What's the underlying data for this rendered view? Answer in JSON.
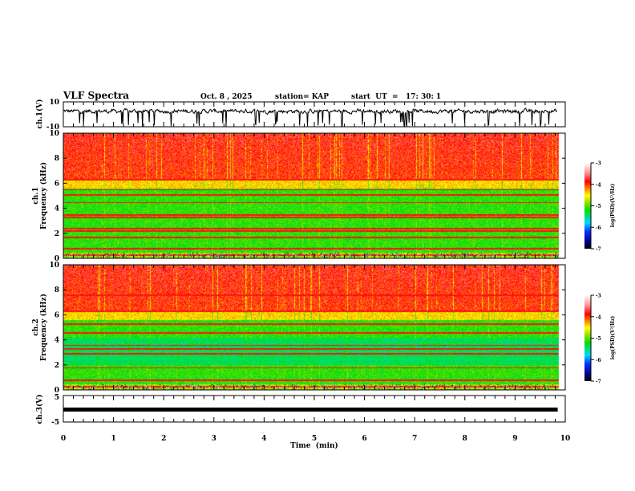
{
  "header": {
    "title": "VLF Spectra",
    "date": "Oct. 8  , 2025",
    "station": "station= KAP",
    "start_ut": "start  UT  =   17: 30: 1"
  },
  "chart_data": [
    {
      "type": "line",
      "ylabel": "ch.1(V)",
      "ylim": [
        -10,
        10
      ],
      "yticks": [
        "10",
        "-10"
      ],
      "xlim": [
        0,
        10
      ],
      "description_values": "noisy waveform mostly between 0 and 5 V with frequent dips toward -10 V"
    },
    {
      "type": "heatmap",
      "ylabel": "ch.1\nFrequency (kHz)",
      "ylabel_lines": [
        "ch.1",
        "Frequency (kHz)"
      ],
      "ylim": [
        0,
        10
      ],
      "yticks": [
        "0",
        "2",
        "4",
        "6",
        "8",
        "10"
      ],
      "xlim": [
        0,
        10
      ],
      "data_end_min": 9.85,
      "line_freqs_khz": [
        0.3,
        0.8,
        1.7,
        2.2,
        2.4,
        3.3,
        3.5,
        4.5,
        5.1,
        5.5,
        6.3
      ],
      "colorbar": {
        "label": "log(PSD)(V²/Hz)",
        "range": [
          -7,
          -3
        ],
        "ticks": [
          "-3",
          "-4",
          "-5",
          "-6",
          "-7"
        ]
      }
    },
    {
      "type": "heatmap",
      "ylabel_lines": [
        "ch.2",
        "Frequency (kHz)"
      ],
      "ylim": [
        0,
        10
      ],
      "yticks": [
        "0",
        "2",
        "4",
        "6",
        "8",
        "10"
      ],
      "xlim": [
        0,
        10
      ],
      "data_end_min": 9.85,
      "line_freqs_khz": [
        0.3,
        0.8,
        1.8,
        2.9,
        3.3,
        3.6,
        4.6,
        5.3,
        6.3,
        7.6
      ],
      "colorbar": {
        "label": "log(PSD)(V²/Hz)",
        "range": [
          -7,
          -3
        ],
        "ticks": [
          "-3",
          "-4",
          "-5",
          "-6",
          "-7"
        ]
      }
    },
    {
      "type": "line",
      "ylabel": "ch.3(V)",
      "ylim": [
        -5,
        5
      ],
      "yticks": [
        "5",
        "-5"
      ],
      "xlim": [
        0,
        10
      ],
      "level_v": -0.3,
      "xlabel": "Time  (min)",
      "xticks": [
        "0",
        "1",
        "2",
        "3",
        "4",
        "5",
        "6",
        "7",
        "8",
        "9",
        "10"
      ]
    }
  ]
}
